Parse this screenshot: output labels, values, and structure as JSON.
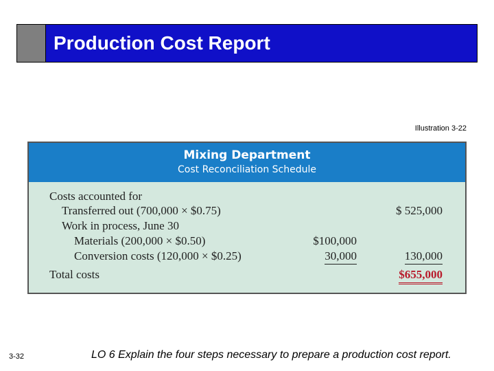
{
  "slide": {
    "title": "Production Cost Report",
    "illustration_label": "Illustration 3-22",
    "slide_number": "3-32",
    "learning_objective": "LO 6  Explain the four steps necessary to prepare a production cost report."
  },
  "schedule": {
    "department": "Mixing Department",
    "subtitle": "Cost Reconciliation Schedule",
    "rows": [
      {
        "label": "Costs accounted for",
        "col1": "",
        "col2": ""
      },
      {
        "label": "Transferred out (700,000 × $0.75)",
        "col1": "",
        "col2": "$ 525,000"
      },
      {
        "label": "Work in process, June 30",
        "col1": "",
        "col2": ""
      },
      {
        "label": "Materials (200,000 × $0.50)",
        "col1": "$100,000",
        "col2": ""
      },
      {
        "label": "Conversion costs (120,000 × $0.25)",
        "col1": "30,000",
        "col2": "130,000"
      },
      {
        "label": "Total costs",
        "col1": "",
        "col2": "$655,000"
      }
    ]
  },
  "colors": {
    "title_bar_blue": "#1010c8",
    "title_bar_gray": "#7f7f7f",
    "schedule_header_blue": "#1a7ec8",
    "schedule_body_green": "#d4e8de",
    "total_red": "#b8192a"
  }
}
